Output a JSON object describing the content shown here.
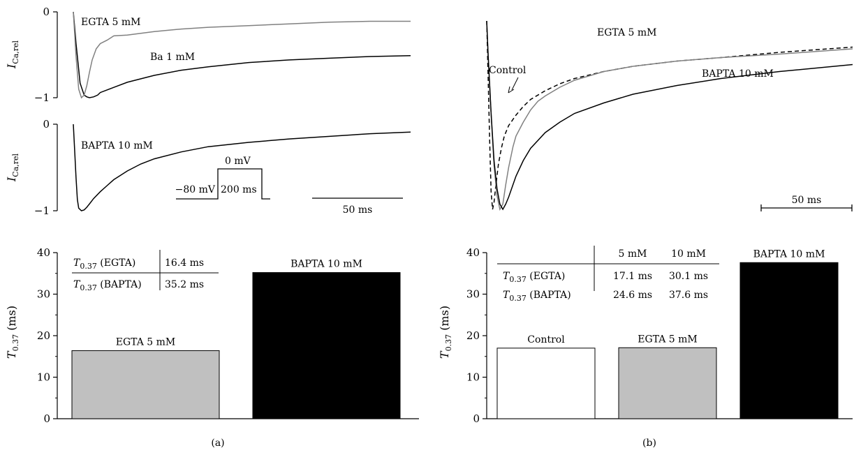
{
  "chart_data": [
    {
      "panel": "a-top",
      "type": "line",
      "ylabel": "I",
      "ylabel_sub": "Ca,rel",
      "ylim": [
        -1,
        0
      ],
      "yticks": [
        "0",
        "−1"
      ],
      "series": [
        {
          "name": "Ba 1 mM",
          "color": "#000000",
          "dash": false,
          "label_text": "Ba 1 mM",
          "t": [
            0,
            2,
            5,
            8,
            10,
            12,
            15,
            18,
            20,
            30,
            40,
            60,
            80,
            100,
            130,
            160,
            190,
            220,
            250
          ],
          "y": [
            0,
            -0.37,
            -0.83,
            -0.97,
            -0.99,
            -1.0,
            -0.99,
            -0.97,
            -0.94,
            -0.88,
            -0.82,
            -0.74,
            -0.68,
            -0.64,
            -0.59,
            -0.56,
            -0.54,
            -0.52,
            -0.51
          ]
        },
        {
          "name": "EGTA 5 mM",
          "color": "#808080",
          "dash": false,
          "label_text": "EGTA 5 mM",
          "t": [
            0,
            2,
            4,
            6,
            8,
            10,
            12,
            14,
            17,
            20,
            25,
            30,
            40,
            60,
            80,
            100,
            130,
            160,
            190,
            220,
            250
          ],
          "y": [
            0,
            -0.52,
            -0.9,
            -1.0,
            -0.97,
            -0.86,
            -0.7,
            -0.56,
            -0.43,
            -0.37,
            -0.33,
            -0.28,
            -0.27,
            -0.23,
            -0.2,
            -0.18,
            -0.16,
            -0.14,
            -0.12,
            -0.11,
            -0.11
          ]
        }
      ]
    },
    {
      "panel": "a-middle",
      "type": "line",
      "ylabel": "I",
      "ylabel_sub": "Ca,rel",
      "ylim": [
        -1,
        0
      ],
      "yticks": [
        "0",
        "−1"
      ],
      "series": [
        {
          "name": "BAPTA 10 mM",
          "color": "#000000",
          "dash": false,
          "label_text": "BAPTA 10 mM",
          "t": [
            0,
            1,
            2,
            3,
            4,
            6,
            8,
            10,
            12,
            15,
            20,
            25,
            30,
            40,
            50,
            60,
            80,
            100,
            130,
            160,
            190,
            220,
            250
          ],
          "y": [
            0,
            -0.3,
            -0.62,
            -0.87,
            -0.97,
            -1.0,
            -0.99,
            -0.96,
            -0.92,
            -0.86,
            -0.78,
            -0.71,
            -0.64,
            -0.54,
            -0.46,
            -0.4,
            -0.32,
            -0.26,
            -0.21,
            -0.17,
            -0.14,
            -0.11,
            -0.09
          ]
        }
      ],
      "protocol": {
        "hold_label": "−80 mV",
        "step_label": "0 mV",
        "duration_label": "200 ms"
      },
      "scalebar": {
        "label": "50 ms",
        "length_ms": 50
      }
    },
    {
      "panel": "b-top",
      "type": "line",
      "series": [
        {
          "name": "EGTA 5 mM",
          "color": "#808080",
          "dash": false,
          "label_text": "EGTA 5 mM",
          "t": [
            0,
            1,
            3,
            5,
            7,
            9,
            11,
            13,
            15,
            18,
            20,
            25,
            30,
            35,
            40,
            50,
            60,
            80,
            100,
            130,
            160,
            200,
            250
          ],
          "y": [
            0.08,
            -0.12,
            -0.45,
            -0.75,
            -0.92,
            -1.0,
            -0.97,
            -0.86,
            -0.76,
            -0.64,
            -0.58,
            -0.5,
            -0.43,
            -0.38,
            -0.35,
            -0.3,
            -0.26,
            -0.21,
            -0.18,
            -0.15,
            -0.13,
            -0.11,
            -0.08
          ]
        },
        {
          "name": "BAPTA 10 mM",
          "color": "#000000",
          "dash": false,
          "label_text": "BAPTA 10 mM",
          "t": [
            0,
            1,
            3,
            5,
            7,
            9,
            11,
            13,
            15,
            20,
            25,
            30,
            40,
            50,
            60,
            80,
            100,
            130,
            160,
            200,
            250
          ],
          "y": [
            0.08,
            -0.12,
            -0.45,
            -0.72,
            -0.88,
            -0.97,
            -1.0,
            -0.97,
            -0.93,
            -0.81,
            -0.72,
            -0.65,
            -0.56,
            -0.5,
            -0.45,
            -0.39,
            -0.34,
            -0.29,
            -0.25,
            -0.21,
            -0.17
          ]
        },
        {
          "name": "Control",
          "color": "#000000",
          "dash": true,
          "label_text": "Control",
          "t": [
            0,
            1,
            2,
            3,
            4,
            5,
            6,
            8,
            10,
            12,
            15,
            20,
            25,
            30,
            40,
            50,
            60,
            80,
            100,
            130,
            160,
            200,
            250
          ],
          "y": [
            0.08,
            -0.25,
            -0.6,
            -0.9,
            -1.0,
            -0.96,
            -0.88,
            -0.74,
            -0.65,
            -0.58,
            -0.52,
            -0.46,
            -0.41,
            -0.37,
            -0.32,
            -0.28,
            -0.25,
            -0.21,
            -0.18,
            -0.15,
            -0.13,
            -0.1,
            -0.07
          ]
        }
      ],
      "scalebar": {
        "label": "50 ms",
        "length_ms": 50
      }
    },
    {
      "panel": "a-bottom",
      "type": "bar",
      "ylabel": "T",
      "ylabel_sub": "0.37",
      "ylabel_unit": " (ms)",
      "ylim": [
        0,
        40
      ],
      "yticks": [
        0,
        10,
        20,
        30,
        40
      ],
      "categories": [
        "EGTA 5 mM",
        "BAPTA 10 mM"
      ],
      "values": [
        16.4,
        35.2
      ],
      "colors": [
        "#c0c0c0",
        "#000000"
      ],
      "table": {
        "rows": [
          {
            "label": "T",
            "sub": "0.37",
            "suffix": " (EGTA)",
            "value": "16.4 ms"
          },
          {
            "label": "T",
            "sub": "0.37",
            "suffix": " (BAPTA)",
            "value": "35.2 ms"
          }
        ]
      }
    },
    {
      "panel": "b-bottom",
      "type": "bar",
      "ylabel": "T",
      "ylabel_sub": "0.37",
      "ylabel_unit": " (ms)",
      "ylim": [
        0,
        40
      ],
      "yticks": [
        0,
        10,
        20,
        30,
        40
      ],
      "categories": [
        "Control",
        "EGTA 5 mM",
        "BAPTA 10 mM"
      ],
      "values": [
        17.0,
        17.1,
        37.6
      ],
      "colors": [
        "#ffffff",
        "#c0c0c0",
        "#000000"
      ],
      "table": {
        "headers": [
          "5 mM",
          "10 mM"
        ],
        "rows": [
          {
            "label": "T",
            "sub": "0.37",
            "suffix": " (EGTA)",
            "values": [
              "17.1 ms",
              "30.1 ms"
            ]
          },
          {
            "label": "T",
            "sub": "0.37",
            "suffix": " (BAPTA)",
            "values": [
              "24.6 ms",
              "37.6 ms"
            ]
          }
        ]
      }
    }
  ],
  "panel_labels": [
    "(a)",
    "(b)"
  ]
}
